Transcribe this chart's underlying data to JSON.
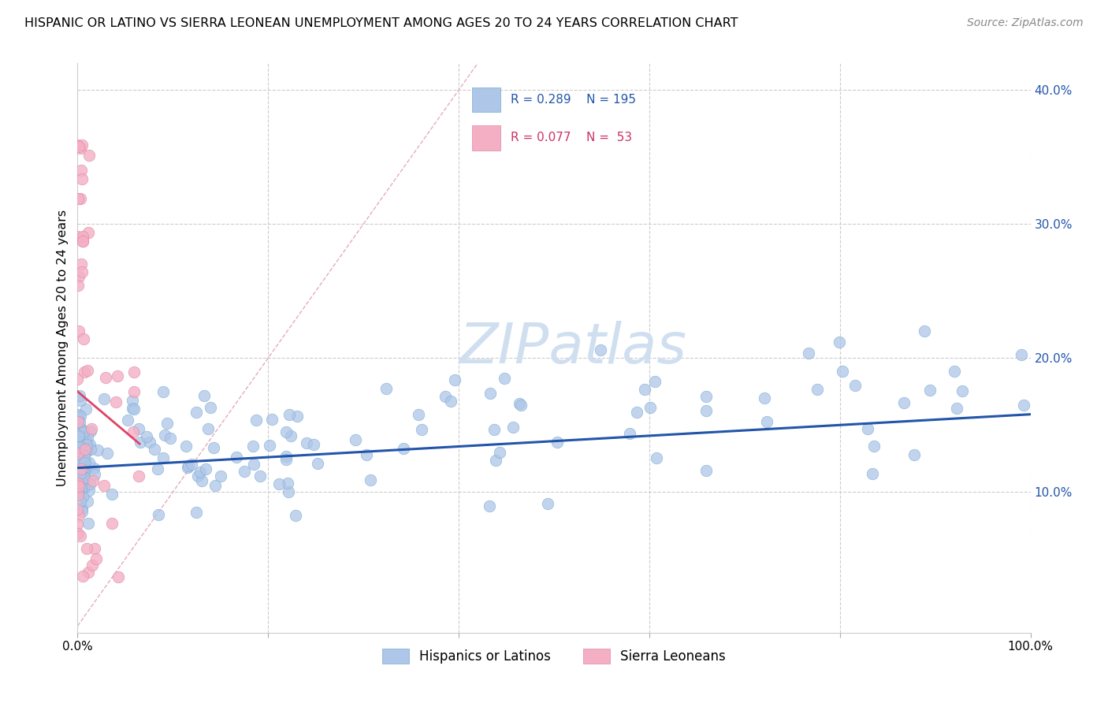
{
  "title": "HISPANIC OR LATINO VS SIERRA LEONEAN UNEMPLOYMENT AMONG AGES 20 TO 24 YEARS CORRELATION CHART",
  "source": "Source: ZipAtlas.com",
  "ylabel": "Unemployment Among Ages 20 to 24 years",
  "xlim": [
    0,
    1.0
  ],
  "ylim": [
    -0.005,
    0.42
  ],
  "blue_R": 0.289,
  "blue_N": 195,
  "pink_R": 0.077,
  "pink_N": 53,
  "blue_color": "#aec6e8",
  "pink_color": "#f4afc4",
  "blue_line_color": "#2255aa",
  "pink_line_color": "#dd4466",
  "diagonal_color": "#e8a0b0",
  "watermark_color": "#d0dff0",
  "legend_blue_label": "Hispanics or Latinos",
  "legend_pink_label": "Sierra Leoneans",
  "blue_trend_intercept": 0.118,
  "blue_trend_slope": 0.04,
  "pink_trend_intercept": 0.175,
  "pink_trend_slope": -0.6,
  "pink_trend_xmax": 0.065
}
